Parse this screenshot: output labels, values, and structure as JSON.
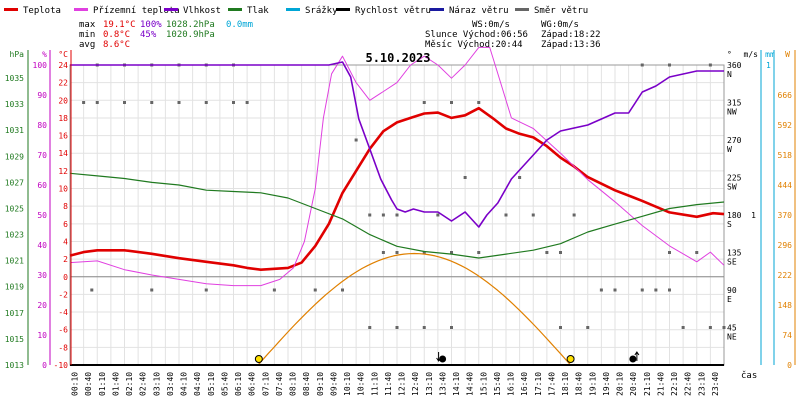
{
  "colors": {
    "temp": "#e00000",
    "feels": "#e040e0",
    "humidity": "#7a00c8",
    "pressure": "#207a20",
    "precip": "#00a6d6",
    "wind": "#000000",
    "gust": "#1a1aa0",
    "direction": "#666666",
    "sun": "#e08000"
  },
  "legend": [
    {
      "label": "Teplota",
      "color_key": "temp"
    },
    {
      "label": "Přízemní teplota",
      "color_key": "feels"
    },
    {
      "label": "Vlhkost",
      "color_key": "humidity"
    },
    {
      "label": "Tlak",
      "color_key": "pressure"
    },
    {
      "label": "Srážky",
      "color_key": "precip"
    },
    {
      "label": "Rychlost větru",
      "color_key": "wind"
    },
    {
      "label": "Náraz větru",
      "color_key": "gust"
    },
    {
      "label": "Směr větru",
      "color_key": "direction"
    }
  ],
  "stats": {
    "max": {
      "label": "max",
      "temp": "19.1°C",
      "hum": "100%",
      "press": "1028.2hPa",
      "rain": "0.0mm"
    },
    "min": {
      "label": "min",
      "temp": "0.8°C",
      "hum": "45%",
      "press": "1020.9hPa"
    },
    "avg": {
      "label": "avg",
      "temp": "8.6°C"
    }
  },
  "info": {
    "ws": "WS:0m/s",
    "wg": "WG:0m/s",
    "sunrise": "Slunce Východ:06:56",
    "sunset": "Západ:18:22",
    "moonrise": "Měsíc  Východ:20:44",
    "moonset": "Západ:13:36"
  },
  "chart_data": {
    "type": "line",
    "title": "5.10.2023",
    "xlabel": "čas",
    "x_ticks": [
      "00:10",
      "00:40",
      "01:10",
      "01:40",
      "02:10",
      "02:40",
      "03:10",
      "03:40",
      "04:10",
      "04:40",
      "05:10",
      "05:40",
      "06:10",
      "06:40",
      "07:10",
      "07:40",
      "08:10",
      "08:40",
      "09:10",
      "09:40",
      "10:10",
      "10:40",
      "11:10",
      "11:40",
      "12:10",
      "12:40",
      "13:10",
      "13:40",
      "14:10",
      "14:40",
      "15:10",
      "15:40",
      "16:10",
      "16:40",
      "17:10",
      "17:40",
      "18:10",
      "18:40",
      "19:10",
      "19:40",
      "20:10",
      "20:40",
      "21:10",
      "21:40",
      "22:10",
      "22:40",
      "23:10",
      "23:40"
    ],
    "axes": {
      "hpa": {
        "label": "hPa",
        "ticks": [
          "1035",
          "1033",
          "1031",
          "1029",
          "1027",
          "1025",
          "1023",
          "1021",
          "1019",
          "1017",
          "1015",
          "1013"
        ]
      },
      "pct": {
        "label": "%",
        "ticks": [
          "100",
          "90",
          "80",
          "70",
          "60",
          "50",
          "40",
          "30",
          "20",
          "10",
          "0"
        ]
      },
      "temp": {
        "label": "°C",
        "ticks": [
          "24",
          "22",
          "20",
          "18",
          "16",
          "14",
          "12",
          "10",
          "8",
          "6",
          "4",
          "2",
          "0",
          "-2",
          "-4",
          "-6",
          "-8",
          "-10"
        ]
      },
      "dir": {
        "label": "°",
        "ticks": [
          "360",
          "315",
          "270",
          "225",
          "180",
          "135",
          "90",
          "45"
        ],
        "names": [
          "N",
          "NW",
          "W",
          "SW",
          "S",
          "SE",
          "E",
          "NE"
        ]
      },
      "ms": {
        "label": "m/s",
        "ticks": [
          "1"
        ]
      },
      "mm": {
        "label": "mm",
        "ticks": [
          "1"
        ]
      },
      "w": {
        "label": "W",
        "ticks": [
          "666",
          "592",
          "518",
          "444",
          "370",
          "296",
          "222",
          "148",
          "74",
          "0"
        ]
      }
    },
    "ylim_temp": [
      -10,
      24
    ],
    "ylim_hpa": [
      1013,
      1036
    ],
    "ylim_pct": [
      0,
      100
    ],
    "ylim_dir": [
      0,
      360
    ],
    "ylim_solar": [
      0,
      740
    ],
    "series": [
      {
        "name": "Teplota",
        "axis": "temp",
        "color_key": "temp",
        "points": [
          [
            0,
            2.4
          ],
          [
            0.5,
            2.8
          ],
          [
            1,
            3
          ],
          [
            2,
            3
          ],
          [
            3,
            2.6
          ],
          [
            4,
            2.1
          ],
          [
            5,
            1.7
          ],
          [
            6,
            1.3
          ],
          [
            6.5,
            1
          ],
          [
            7,
            0.8
          ],
          [
            8,
            1
          ],
          [
            8.5,
            1.6
          ],
          [
            9,
            3.5
          ],
          [
            9.5,
            6
          ],
          [
            10,
            9.5
          ],
          [
            10.5,
            12
          ],
          [
            11,
            14.5
          ],
          [
            11.5,
            16.5
          ],
          [
            12,
            17.5
          ],
          [
            12.5,
            18
          ],
          [
            13,
            18.5
          ],
          [
            13.5,
            18.6
          ],
          [
            14,
            18
          ],
          [
            14.5,
            18.3
          ],
          [
            15,
            19.1
          ],
          [
            15.5,
            18
          ],
          [
            16,
            16.8
          ],
          [
            16.5,
            16.2
          ],
          [
            17,
            15.8
          ],
          [
            17.5,
            14.8
          ],
          [
            18,
            13.5
          ],
          [
            18.5,
            12.5
          ],
          [
            19,
            11.3
          ],
          [
            20,
            9.8
          ],
          [
            21,
            8.6
          ],
          [
            22,
            7.3
          ],
          [
            23,
            6.8
          ],
          [
            23.6,
            7.2
          ],
          [
            24,
            7.1
          ]
        ]
      },
      {
        "name": "Přízemní teplota",
        "axis": "temp",
        "color_key": "feels",
        "points": [
          [
            0,
            1.6
          ],
          [
            1,
            1.8
          ],
          [
            2,
            0.8
          ],
          [
            3,
            0.2
          ],
          [
            4,
            -0.3
          ],
          [
            5,
            -0.8
          ],
          [
            6,
            -1
          ],
          [
            7,
            -1
          ],
          [
            7.7,
            -0.3
          ],
          [
            8.2,
            1
          ],
          [
            8.6,
            4
          ],
          [
            9,
            10
          ],
          [
            9.3,
            18
          ],
          [
            9.6,
            23
          ],
          [
            10,
            25
          ],
          [
            10.5,
            22
          ],
          [
            11,
            20
          ],
          [
            11.5,
            21
          ],
          [
            12,
            22
          ],
          [
            12.5,
            24
          ],
          [
            13,
            25
          ],
          [
            13.5,
            24
          ],
          [
            14,
            22.5
          ],
          [
            14.5,
            24
          ],
          [
            15,
            26
          ],
          [
            15.4,
            26
          ],
          [
            15.8,
            22
          ],
          [
            16.2,
            18
          ],
          [
            17,
            16.8
          ],
          [
            18,
            14
          ],
          [
            19,
            11
          ],
          [
            20,
            8.5
          ],
          [
            21,
            5.8
          ],
          [
            22,
            3.5
          ],
          [
            23,
            1.7
          ],
          [
            23.5,
            2.8
          ],
          [
            24,
            1.3
          ]
        ]
      },
      {
        "name": "Vlhkost",
        "axis": "pct",
        "color_key": "humidity",
        "points": [
          [
            0,
            100
          ],
          [
            9,
            100
          ],
          [
            9.5,
            100
          ],
          [
            10,
            101
          ],
          [
            10.3,
            96
          ],
          [
            10.6,
            82
          ],
          [
            11,
            72
          ],
          [
            11.4,
            62
          ],
          [
            11.8,
            55
          ],
          [
            12,
            52
          ],
          [
            12.3,
            51
          ],
          [
            12.6,
            52
          ],
          [
            13,
            51
          ],
          [
            13.5,
            51
          ],
          [
            14,
            48
          ],
          [
            14.5,
            51
          ],
          [
            15,
            46
          ],
          [
            15.3,
            50
          ],
          [
            15.7,
            54
          ],
          [
            16.2,
            62
          ],
          [
            17,
            70
          ],
          [
            17.5,
            75
          ],
          [
            18,
            78
          ],
          [
            19,
            80
          ],
          [
            19.5,
            82
          ],
          [
            20,
            84
          ],
          [
            20.5,
            84
          ],
          [
            21,
            91
          ],
          [
            21.5,
            93
          ],
          [
            22,
            96
          ],
          [
            23,
            98
          ],
          [
            24,
            98
          ]
        ]
      },
      {
        "name": "Tlak",
        "axis": "hpa",
        "color_key": "pressure",
        "points": [
          [
            0,
            1027.7
          ],
          [
            1,
            1027.5
          ],
          [
            2,
            1027.3
          ],
          [
            3,
            1027
          ],
          [
            4,
            1026.8
          ],
          [
            5,
            1026.4
          ],
          [
            6,
            1026.3
          ],
          [
            7,
            1026.2
          ],
          [
            8,
            1025.8
          ],
          [
            9,
            1025
          ],
          [
            10,
            1024.2
          ],
          [
            11,
            1023
          ],
          [
            12,
            1022.1
          ],
          [
            13,
            1021.7
          ],
          [
            14,
            1021.5
          ],
          [
            15,
            1021.2
          ],
          [
            16,
            1021.5
          ],
          [
            17,
            1021.8
          ],
          [
            18,
            1022.3
          ],
          [
            19,
            1023.2
          ],
          [
            20,
            1023.8
          ],
          [
            21,
            1024.4
          ],
          [
            22,
            1025
          ],
          [
            23,
            1025.3
          ],
          [
            24,
            1025.5
          ]
        ]
      },
      {
        "name": "Sluneční záření",
        "axis": "solar",
        "color_key": "sun",
        "shape": "arc",
        "start": 6.9,
        "end": 18.37,
        "peak": 275
      }
    ],
    "direction_points": [
      [
        0.5,
        315
      ],
      [
        1,
        315
      ],
      [
        2,
        315
      ],
      [
        3,
        315
      ],
      [
        4,
        315
      ],
      [
        5,
        315
      ],
      [
        6,
        315
      ],
      [
        6.5,
        315
      ],
      [
        1,
        360
      ],
      [
        2,
        360
      ],
      [
        3,
        360
      ],
      [
        4,
        360
      ],
      [
        5,
        360
      ],
      [
        6,
        360
      ],
      [
        0.8,
        90
      ],
      [
        3,
        90
      ],
      [
        5,
        90
      ],
      [
        7.5,
        90
      ],
      [
        9,
        90
      ],
      [
        10,
        90
      ],
      [
        10.5,
        270
      ],
      [
        11,
        180
      ],
      [
        11.5,
        180
      ],
      [
        12,
        180
      ],
      [
        11.5,
        135
      ],
      [
        12,
        135
      ],
      [
        13,
        135
      ],
      [
        14,
        135
      ],
      [
        15,
        135
      ],
      [
        13,
        315
      ],
      [
        14,
        315
      ],
      [
        15,
        315
      ],
      [
        14.5,
        225
      ],
      [
        13.5,
        180
      ],
      [
        16,
        180
      ],
      [
        16.5,
        225
      ],
      [
        17,
        180
      ],
      [
        17.5,
        135
      ],
      [
        18,
        135
      ],
      [
        18.5,
        180
      ],
      [
        19.5,
        90
      ],
      [
        20,
        90
      ],
      [
        21,
        90
      ],
      [
        21.5,
        90
      ],
      [
        22,
        90
      ],
      [
        22.5,
        45
      ],
      [
        23,
        135
      ],
      [
        23.5,
        45
      ],
      [
        24,
        45
      ],
      [
        11,
        45
      ],
      [
        12,
        45
      ],
      [
        13,
        45
      ],
      [
        14,
        45
      ],
      [
        18,
        45
      ],
      [
        19,
        45
      ],
      [
        21,
        360
      ],
      [
        22,
        360
      ],
      [
        23.5,
        360
      ],
      [
        22,
        135
      ]
    ],
    "events": [
      {
        "kind": "sunrise",
        "hour": 6.93
      },
      {
        "kind": "moonset",
        "hour": 13.6
      },
      {
        "kind": "sunset",
        "hour": 18.37
      },
      {
        "kind": "moonrise",
        "hour": 20.73
      }
    ]
  }
}
